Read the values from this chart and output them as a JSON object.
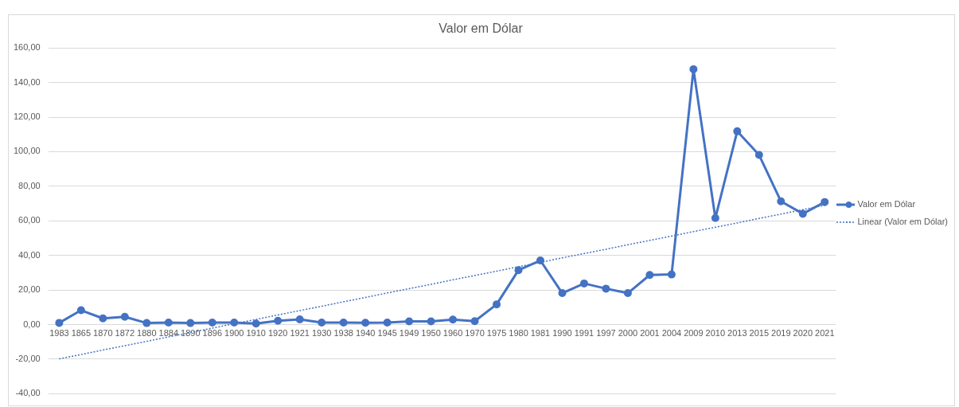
{
  "chart_data": {
    "type": "line",
    "title": "Valor em Dólar",
    "categories": [
      "1983",
      "1865",
      "1870",
      "1872",
      "1880",
      "1884",
      "1890",
      "1896",
      "1900",
      "1910",
      "1920",
      "1921",
      "1930",
      "1938",
      "1940",
      "1945",
      "1949",
      "1950",
      "1960",
      "1970",
      "1975",
      "1980",
      "1981",
      "1990",
      "1991",
      "1997",
      "2000",
      "2001",
      "2004",
      "2009",
      "2010",
      "2013",
      "2015",
      "2019",
      "2020",
      "2021"
    ],
    "series": [
      {
        "name": "Valor em Dólar",
        "color": "#4472c4",
        "marker": "circle",
        "values": [
          1.0,
          8.3,
          3.6,
          4.5,
          0.9,
          1.2,
          0.9,
          1.2,
          1.2,
          0.6,
          2.2,
          3.0,
          1.2,
          1.2,
          1.1,
          1.2,
          1.9,
          1.9,
          2.9,
          2.0,
          11.7,
          31.5,
          37.1,
          18.2,
          23.8,
          20.8,
          18.2,
          28.7,
          29.0,
          147.7,
          61.6,
          111.8,
          98.1,
          71.3,
          64.1,
          70.9
        ]
      },
      {
        "name": "Linear (Valor em Dólar)",
        "type": "line",
        "color": "#4472c4",
        "marker": "none",
        "line_style": "dotted",
        "values": [
          -19.8,
          -17.3,
          -14.7,
          -12.2,
          -9.7,
          -7.1,
          -4.6,
          -2.0,
          0.5,
          3.0,
          5.6,
          8.1,
          10.6,
          13.2,
          15.7,
          18.3,
          20.8,
          23.3,
          25.9,
          28.4,
          30.9,
          33.5,
          36.0,
          38.6,
          41.1,
          43.6,
          46.2,
          48.7,
          51.2,
          53.8,
          56.3,
          58.8,
          61.4,
          63.9,
          66.5,
          69.0
        ]
      }
    ],
    "ylim": [
      -40,
      160
    ],
    "yticks": [
      {
        "value": -40,
        "label": "-40,00"
      },
      {
        "value": -20,
        "label": "-20,00"
      },
      {
        "value": 0,
        "label": "0,00"
      },
      {
        "value": 20,
        "label": "20,00"
      },
      {
        "value": 40,
        "label": "40,00"
      },
      {
        "value": 60,
        "label": "60,00"
      },
      {
        "value": 80,
        "label": "80,00"
      },
      {
        "value": 100,
        "label": "100,00"
      },
      {
        "value": 120,
        "label": "120,00"
      },
      {
        "value": 140,
        "label": "140,00"
      },
      {
        "value": 160,
        "label": "160,00"
      }
    ],
    "grid": "y",
    "legend": "right"
  }
}
